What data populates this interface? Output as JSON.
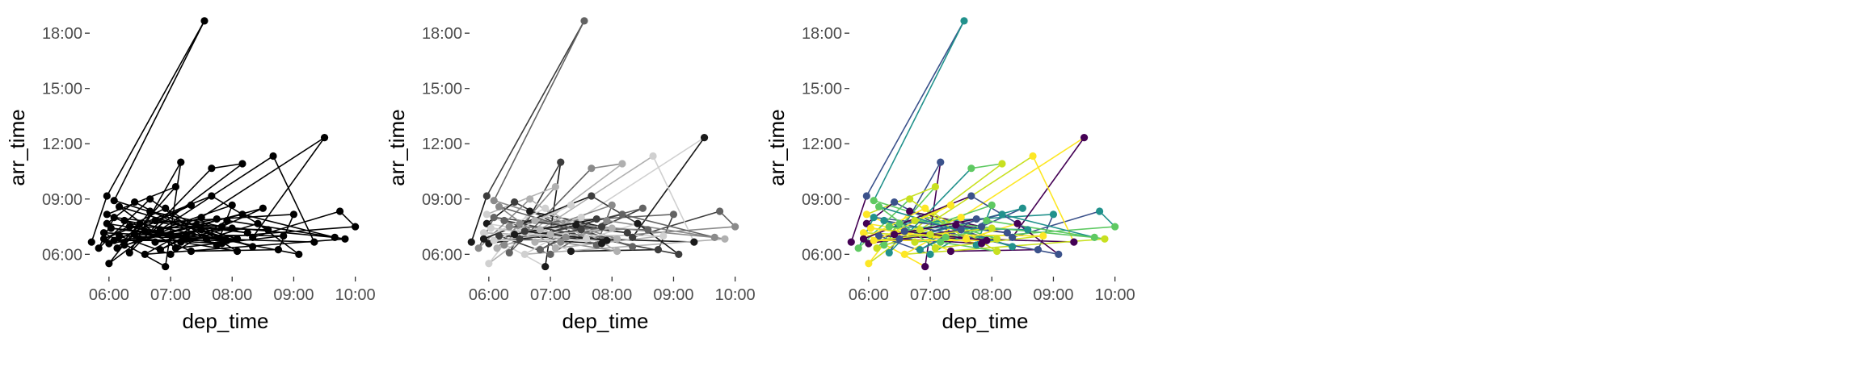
{
  "chart_data": [
    {
      "type": "line",
      "subtype": "path-with-points",
      "xlabel": "dep_time",
      "ylabel": "arr_time",
      "xlim": [
        "05:42",
        "10:05"
      ],
      "ylim": [
        "04:50",
        "18:45"
      ],
      "x_ticks": [
        "06:00",
        "07:00",
        "08:00",
        "09:00",
        "10:00"
      ],
      "y_ticks": [
        "06:00",
        "09:00",
        "12:00",
        "15:00",
        "18:00"
      ],
      "grid": false,
      "legend": "none",
      "color_mode": "mono",
      "colors": [
        "#000000"
      ],
      "points": []
    },
    {
      "type": "line",
      "subtype": "path-with-points",
      "xlabel": "dep_time",
      "ylabel": "arr_time",
      "xlim": [
        "05:42",
        "10:05"
      ],
      "ylim": [
        "04:50",
        "18:45"
      ],
      "x_ticks": [
        "06:00",
        "07:00",
        "08:00",
        "09:00",
        "10:00"
      ],
      "y_ticks": [
        "06:00",
        "09:00",
        "12:00",
        "15:00",
        "18:00"
      ],
      "grid": false,
      "legend": "none",
      "color_mode": "grey",
      "colors": [
        "#1a1a1a",
        "#3d3d3d",
        "#636363",
        "#8a8a8a",
        "#b0b0b0",
        "#d0d0d0"
      ],
      "points": []
    },
    {
      "type": "line",
      "subtype": "path-with-points",
      "xlabel": "dep_time",
      "ylabel": "arr_time",
      "xlim": [
        "05:42",
        "10:05"
      ],
      "ylim": [
        "04:50",
        "18:45"
      ],
      "x_ticks": [
        "06:00",
        "07:00",
        "08:00",
        "09:00",
        "10:00"
      ],
      "y_ticks": [
        "06:00",
        "09:00",
        "12:00",
        "15:00",
        "18:00"
      ],
      "grid": false,
      "legend": "none",
      "color_mode": "viridis",
      "colors": [
        "#440154",
        "#3b528b",
        "#21918c",
        "#5ec962",
        "#c8e020",
        "#fde725"
      ],
      "points": []
    }
  ],
  "shared_points": [
    {
      "dep": "05:43",
      "arr": "06:40"
    },
    {
      "dep": "05:58",
      "arr": "09:10"
    },
    {
      "dep": "07:33",
      "arr": "18:40"
    },
    {
      "dep": "06:05",
      "arr": "08:55"
    },
    {
      "dep": "08:05",
      "arr": "06:50"
    },
    {
      "dep": "05:55",
      "arr": "07:10"
    },
    {
      "dep": "06:55",
      "arr": "05:20"
    },
    {
      "dep": "07:10",
      "arr": "11:00"
    },
    {
      "dep": "06:20",
      "arr": "06:05"
    },
    {
      "dep": "07:40",
      "arr": "10:40"
    },
    {
      "dep": "08:10",
      "arr": "10:55"
    },
    {
      "dep": "06:00",
      "arr": "05:30"
    },
    {
      "dep": "06:40",
      "arr": "08:20"
    },
    {
      "dep": "07:50",
      "arr": "07:30"
    },
    {
      "dep": "08:30",
      "arr": "08:30"
    },
    {
      "dep": "06:15",
      "arr": "06:30"
    },
    {
      "dep": "07:05",
      "arr": "09:40"
    },
    {
      "dep": "05:58",
      "arr": "08:10"
    },
    {
      "dep": "07:20",
      "arr": "06:10"
    },
    {
      "dep": "08:45",
      "arr": "06:15"
    },
    {
      "dep": "09:00",
      "arr": "08:10"
    },
    {
      "dep": "06:30",
      "arr": "07:40"
    },
    {
      "dep": "06:08",
      "arr": "06:20"
    },
    {
      "dep": "07:30",
      "arr": "08:00"
    },
    {
      "dep": "09:30",
      "arr": "12:20"
    },
    {
      "dep": "08:20",
      "arr": "06:55"
    },
    {
      "dep": "09:45",
      "arr": "08:20"
    },
    {
      "dep": "10:00",
      "arr": "07:30"
    },
    {
      "dep": "06:45",
      "arr": "06:40"
    },
    {
      "dep": "07:15",
      "arr": "07:00"
    },
    {
      "dep": "05:58",
      "arr": "07:40"
    },
    {
      "dep": "06:25",
      "arr": "08:50"
    },
    {
      "dep": "07:45",
      "arr": "06:30"
    },
    {
      "dep": "08:00",
      "arr": "08:40"
    },
    {
      "dep": "06:50",
      "arr": "07:20"
    },
    {
      "dep": "08:40",
      "arr": "11:20"
    },
    {
      "dep": "09:20",
      "arr": "06:40"
    },
    {
      "dep": "06:10",
      "arr": "07:00"
    },
    {
      "dep": "07:00",
      "arr": "06:00"
    },
    {
      "dep": "07:55",
      "arr": "07:50"
    },
    {
      "dep": "09:50",
      "arr": "06:50"
    },
    {
      "dep": "06:35",
      "arr": "06:00"
    },
    {
      "dep": "07:25",
      "arr": "07:35"
    },
    {
      "dep": "08:15",
      "arr": "07:10"
    },
    {
      "dep": "06:05",
      "arr": "08:00"
    },
    {
      "dep": "05:50",
      "arr": "06:20"
    },
    {
      "dep": "06:40",
      "arr": "09:00"
    },
    {
      "dep": "07:35",
      "arr": "06:50"
    },
    {
      "dep": "08:25",
      "arr": "07:40"
    },
    {
      "dep": "09:05",
      "arr": "06:00"
    },
    {
      "dep": "06:15",
      "arr": "07:50"
    },
    {
      "dep": "07:10",
      "arr": "06:40"
    },
    {
      "dep": "08:05",
      "arr": "06:10"
    },
    {
      "dep": "06:55",
      "arr": "08:30"
    },
    {
      "dep": "05:55",
      "arr": "06:50"
    },
    {
      "dep": "07:40",
      "arr": "09:10"
    },
    {
      "dep": "08:35",
      "arr": "07:20"
    },
    {
      "dep": "06:20",
      "arr": "07:30"
    },
    {
      "dep": "07:00",
      "arr": "07:05"
    },
    {
      "dep": "06:02",
      "arr": "07:25"
    },
    {
      "dep": "07:50",
      "arr": "06:35"
    },
    {
      "dep": "06:30",
      "arr": "06:50"
    },
    {
      "dep": "08:10",
      "arr": "08:10"
    },
    {
      "dep": "09:40",
      "arr": "06:55"
    },
    {
      "dep": "06:45",
      "arr": "07:50"
    },
    {
      "dep": "07:20",
      "arr": "08:40"
    },
    {
      "dep": "06:00",
      "arr": "06:35"
    },
    {
      "dep": "07:30",
      "arr": "07:20"
    },
    {
      "dep": "08:20",
      "arr": "06:25"
    },
    {
      "dep": "06:10",
      "arr": "08:35"
    },
    {
      "dep": "07:05",
      "arr": "06:20"
    },
    {
      "dep": "08:50",
      "arr": "07:00"
    },
    {
      "dep": "06:25",
      "arr": "07:05"
    },
    {
      "dep": "07:45",
      "arr": "07:55"
    },
    {
      "dep": "06:50",
      "arr": "06:15"
    },
    {
      "dep": "07:15",
      "arr": "06:55"
    },
    {
      "dep": "08:00",
      "arr": "07:25"
    },
    {
      "dep": "06:05",
      "arr": "06:45"
    },
    {
      "dep": "07:55",
      "arr": "06:45"
    },
    {
      "dep": "06:35",
      "arr": "07:15"
    }
  ]
}
